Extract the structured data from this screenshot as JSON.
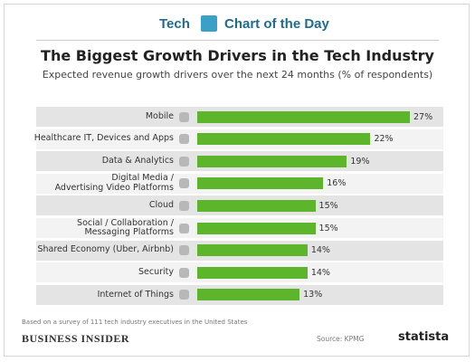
{
  "header": {
    "left": "Tech",
    "right": "Chart of the Day"
  },
  "chart_data": {
    "type": "bar",
    "title": "The Biggest Growth Drivers in the Tech Industry",
    "subtitle": "Expected revenue growth drivers over the next 24 months (% of respondents)",
    "categories": [
      "Mobile",
      "Healthcare IT, Devices and Apps",
      "Data & Analytics",
      "Digital Media /\nAdvertising Video Platforms",
      "Cloud",
      "Social / Collaboration /\nMessaging Platforms",
      "Shared Economy (Uber, Airbnb)",
      "Security",
      "Internet of Things"
    ],
    "values": [
      27,
      22,
      19,
      16,
      15,
      15,
      14,
      14,
      13
    ],
    "value_labels": [
      "27%",
      "22%",
      "19%",
      "16%",
      "15%",
      "15%",
      "14%",
      "14%",
      "13%"
    ],
    "color": "#5db52b"
  },
  "footer": {
    "note": "Based on a survey of 111 tech industry executives in the United States",
    "brand": "Business Insider",
    "source": "Source: KPMG",
    "logo": "statista"
  }
}
